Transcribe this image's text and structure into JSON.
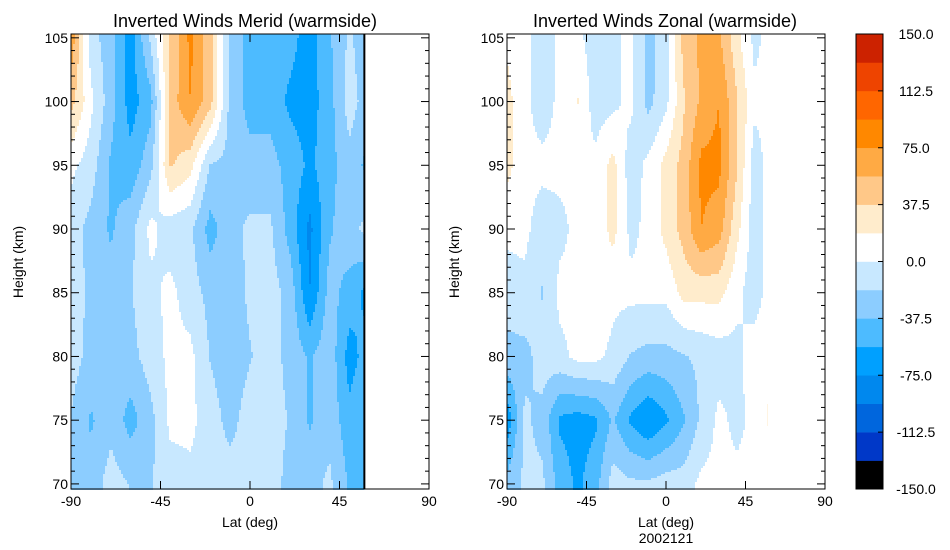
{
  "chart_data": [
    {
      "type": "heatmap",
      "title": "Inverted Winds Merid (warmside)",
      "xlabel": "Lat (deg)",
      "ylabel": "Height (km)",
      "subtitle": "",
      "xlim": [
        -90,
        90
      ],
      "ylim": [
        69.6,
        105.3
      ],
      "xticks": [
        "-90",
        "-45",
        "0",
        "45",
        "90"
      ],
      "yticks": [
        "70",
        "75",
        "80",
        "85",
        "90",
        "95",
        "100",
        "105"
      ],
      "lats": [
        -90,
        -80,
        -70,
        -60,
        -50,
        -40,
        -30,
        -20,
        -10,
        0,
        10,
        20,
        30,
        40,
        50,
        57.5
      ],
      "heights": [
        105,
        100,
        95,
        90,
        85,
        80,
        75,
        70
      ],
      "z": [
        [
          70,
          -10,
          -30,
          -65,
          -15,
          40,
          80,
          45,
          -25,
          -45,
          -45,
          -50,
          -65,
          -40,
          -15,
          -30
        ],
        [
          45,
          5,
          -30,
          -65,
          -45,
          45,
          75,
          45,
          -25,
          -45,
          -45,
          -60,
          -65,
          -45,
          -10,
          -25
        ],
        [
          5,
          -10,
          -40,
          -50,
          -25,
          40,
          25,
          -20,
          -25,
          -30,
          -30,
          -45,
          -60,
          -45,
          -25,
          -40
        ],
        [
          -10,
          -25,
          -40,
          -25,
          5,
          -10,
          -15,
          -45,
          -25,
          -15,
          -15,
          -45,
          -80,
          -40,
          -25,
          -15
        ],
        [
          -5,
          -25,
          -30,
          -20,
          -5,
          5,
          -10,
          -25,
          -30,
          -15,
          -10,
          -25,
          -75,
          -30,
          -45,
          -60
        ],
        [
          -10,
          -25,
          -30,
          -25,
          -10,
          5,
          5,
          -20,
          -30,
          -20,
          -10,
          -25,
          -40,
          -25,
          -65,
          -50
        ],
        [
          -20,
          -40,
          -25,
          -45,
          -25,
          5,
          5,
          -10,
          -25,
          -10,
          -10,
          -20,
          -40,
          -25,
          -50,
          -40
        ],
        [
          -25,
          -30,
          -10,
          -20,
          -20,
          -10,
          -5,
          -10,
          -10,
          -10,
          -10,
          -25,
          -25,
          -15,
          -40,
          -40
        ]
      ]
    },
    {
      "type": "heatmap",
      "title": "Inverted Winds Zonal (warmside)",
      "xlabel": "Lat (deg)",
      "ylabel": "Height (km)",
      "subtitle": "2002121",
      "xlim": [
        -90,
        90
      ],
      "ylim": [
        69.6,
        105.3
      ],
      "xticks": [
        "-90",
        "-45",
        "0",
        "45",
        "90"
      ],
      "yticks": [
        "70",
        "75",
        "80",
        "85",
        "90",
        "95",
        "100",
        "105"
      ],
      "lats": [
        -90,
        -80,
        -70,
        -60,
        -50,
        -40,
        -30,
        -20,
        -10,
        0,
        10,
        20,
        30,
        40,
        50,
        57.5
      ],
      "heights": [
        105,
        100,
        95,
        90,
        85,
        80,
        75,
        70
      ],
      "z": [
        [
          15,
          5,
          -10,
          5,
          5,
          -10,
          -5,
          5,
          -25,
          -10,
          45,
          60,
          60,
          25,
          -5,
          5
        ],
        [
          25,
          5,
          -10,
          5,
          20,
          -10,
          -5,
          5,
          -25,
          -5,
          35,
          60,
          75,
          40,
          5,
          5
        ],
        [
          25,
          5,
          5,
          5,
          5,
          5,
          25,
          -10,
          5,
          25,
          45,
          80,
          80,
          40,
          -10,
          5
        ],
        [
          5,
          5,
          -10,
          -5,
          5,
          5,
          25,
          -5,
          5,
          25,
          45,
          75,
          65,
          25,
          -10,
          5
        ],
        [
          -10,
          -5,
          -20,
          5,
          5,
          15,
          5,
          5,
          5,
          5,
          25,
          25,
          25,
          5,
          -10,
          5
        ],
        [
          -25,
          -25,
          -10,
          -5,
          5,
          5,
          -5,
          -20,
          -25,
          -25,
          -20,
          -15,
          -10,
          -5,
          10,
          15
        ],
        [
          -70,
          -15,
          -25,
          -60,
          -65,
          -60,
          -35,
          -60,
          -75,
          -60,
          -40,
          -15,
          5,
          -5,
          5,
          20
        ],
        [
          -30,
          -15,
          -15,
          -45,
          -60,
          -45,
          -10,
          -15,
          -15,
          -10,
          -10,
          5,
          5,
          5,
          5,
          5
        ]
      ]
    }
  ],
  "colorbar": {
    "range": [
      -150,
      150
    ],
    "labels": [
      "150.0",
      "112.5",
      "75.0",
      "37.5",
      "0.0",
      "-37.5",
      "-75.0",
      "-112.5",
      "-150.0"
    ],
    "colors": [
      "#000000",
      "#0038c8",
      "#0066dd",
      "#0088ee",
      "#00a0ff",
      "#4dbbff",
      "#8ccdff",
      "#c8e8ff",
      "#ffffff",
      "#ffeccc",
      "#ffc888",
      "#ffaa44",
      "#ff8800",
      "#ff6600",
      "#ee4400",
      "#cc2200"
    ]
  }
}
